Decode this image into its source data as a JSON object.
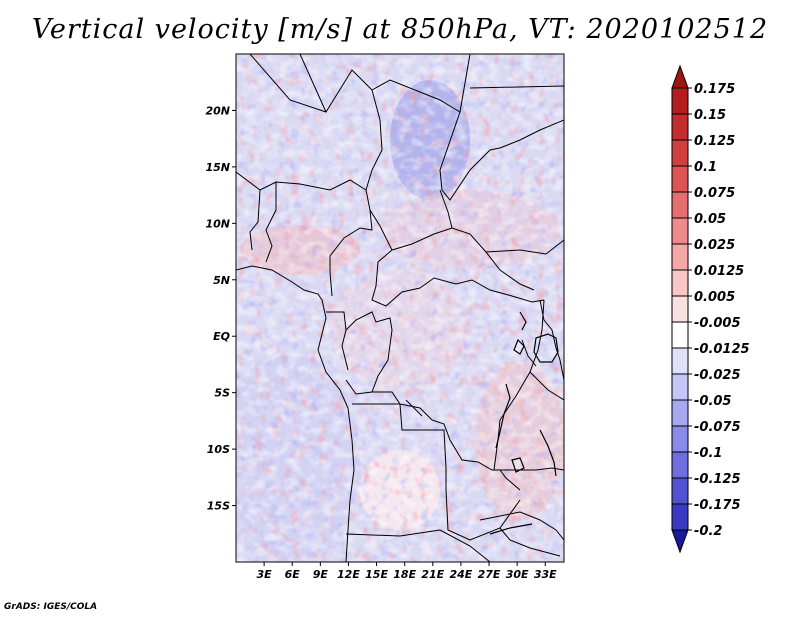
{
  "title": "Vertical velocity [m/s] at 850hPa, VT: 2020102512",
  "credit": "GrADS: IGES/COLA",
  "map": {
    "lon_range": [
      0,
      35
    ],
    "lat_range": [
      -20,
      25
    ],
    "lat_ticks": [
      {
        "value": 20,
        "label": "20N"
      },
      {
        "value": 15,
        "label": "15N"
      },
      {
        "value": 10,
        "label": "10N"
      },
      {
        "value": 5,
        "label": "5N"
      },
      {
        "value": 0,
        "label": "EQ"
      },
      {
        "value": -5,
        "label": "5S"
      },
      {
        "value": -10,
        "label": "10S"
      },
      {
        "value": -15,
        "label": "15S"
      }
    ],
    "lon_ticks": [
      {
        "value": 3,
        "label": "3E"
      },
      {
        "value": 6,
        "label": "6E"
      },
      {
        "value": 9,
        "label": "9E"
      },
      {
        "value": 12,
        "label": "12E"
      },
      {
        "value": 15,
        "label": "15E"
      },
      {
        "value": 18,
        "label": "18E"
      },
      {
        "value": 21,
        "label": "21E"
      },
      {
        "value": 24,
        "label": "24E"
      },
      {
        "value": 27,
        "label": "27E"
      },
      {
        "value": 30,
        "label": "30E"
      },
      {
        "value": 33,
        "label": "33E"
      }
    ]
  },
  "colorbar": {
    "levels": [
      {
        "label": "0.175",
        "color": "#b41e1e"
      },
      {
        "label": "0.15",
        "color": "#c42d2d"
      },
      {
        "label": "0.125",
        "color": "#d23f3f"
      },
      {
        "label": "0.1",
        "color": "#de5454"
      },
      {
        "label": "0.075",
        "color": "#e66e6e"
      },
      {
        "label": "0.05",
        "color": "#ee8a8a"
      },
      {
        "label": "0.025",
        "color": "#f4a8a8"
      },
      {
        "label": "0.0125",
        "color": "#f8c6c6"
      },
      {
        "label": "0.005",
        "color": "#fbe0e0"
      },
      {
        "label": "-0.005",
        "color": "#ffffff"
      },
      {
        "label": "-0.0125",
        "color": "#e0e0fb"
      },
      {
        "label": "-0.025",
        "color": "#c6c6f6"
      },
      {
        "label": "-0.05",
        "color": "#a8a8f0"
      },
      {
        "label": "-0.075",
        "color": "#8a8ae8"
      },
      {
        "label": "-0.1",
        "color": "#6e6ee0"
      },
      {
        "label": "-0.125",
        "color": "#5252d4"
      },
      {
        "label": "-0.175",
        "color": "#3a3ac4"
      },
      {
        "label": "-0.2",
        "color": "#2626b0"
      }
    ],
    "top_color": "#a01414",
    "bottom_color": "#1a1a9c"
  }
}
